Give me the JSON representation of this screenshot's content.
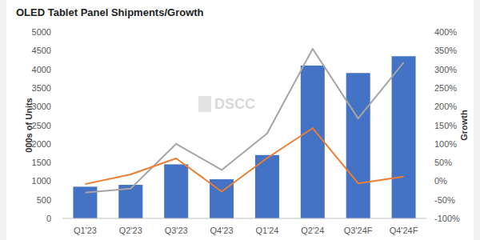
{
  "chart_data": {
    "type": "bar",
    "title": "OLED Tablet Panel Shipments/Growth",
    "y_label": "000s of Units",
    "y2_label": "Growth",
    "annotations": [
      "DSCC"
    ],
    "categories": [
      "Q1'23",
      "Q2'23",
      "Q3'23",
      "Q4'23",
      "Q1'24",
      "Q2'24",
      "Q3'24F",
      "Q4'24F"
    ],
    "series": [
      {
        "type": "bar",
        "color": "#4472c4",
        "values": [
          850,
          900,
          1450,
          1050,
          1700,
          4100,
          3900,
          4350
        ]
      },
      {
        "type": "line",
        "axis": "y2",
        "color": "#a5a5a5",
        "values": [
          -31,
          -20,
          100,
          30,
          128,
          355,
          168,
          318
        ]
      },
      {
        "type": "line",
        "axis": "y2",
        "color": "#ed7d31",
        "values": [
          -8,
          18,
          61,
          -28,
          62,
          142,
          -6,
          12
        ]
      }
    ],
    "ylim": [
      0,
      5000
    ],
    "yticks": [
      0,
      500,
      1000,
      1500,
      2000,
      2500,
      3000,
      3500,
      4000,
      4500,
      5000
    ],
    "y2lim": [
      -100,
      400
    ],
    "y2ticks": [
      {
        "value": -100,
        "label": "-100%"
      },
      {
        "value": -50,
        "label": "-50%"
      },
      {
        "value": 0,
        "label": "0%"
      },
      {
        "value": 50,
        "label": "50%"
      },
      {
        "value": 100,
        "label": "100%"
      },
      {
        "value": 150,
        "label": "150%"
      },
      {
        "value": 200,
        "label": "200%"
      },
      {
        "value": 250,
        "label": "250%"
      },
      {
        "value": 300,
        "label": "300%"
      },
      {
        "value": 350,
        "label": "350%"
      },
      {
        "value": 400,
        "label": "400%"
      }
    ],
    "grid": false
  }
}
